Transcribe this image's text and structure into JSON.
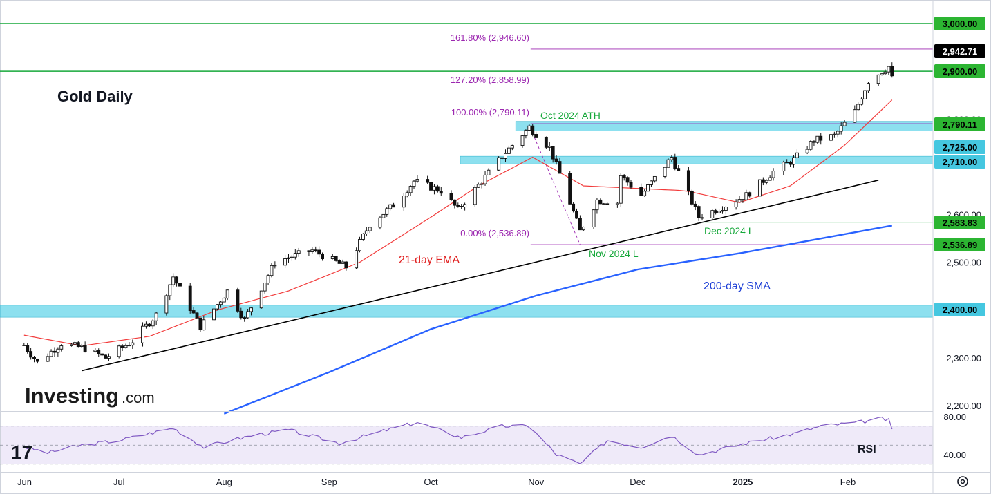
{
  "chart_data": {
    "type": "candlestick",
    "title": "Gold Daily",
    "x_axis": {
      "tick_labels": [
        "Jun",
        "Jul",
        "Aug",
        "Sep",
        "Oct",
        "Nov",
        "Dec",
        "2025",
        "Feb"
      ],
      "range": [
        "2024-06-01",
        "2025-02-28"
      ]
    },
    "y_axis": {
      "tick_labels": [
        "2,200.00",
        "2,300.00",
        "2,500.00",
        "2,600.00",
        "2,800.00"
      ],
      "tick_values": [
        2200,
        2300,
        2500,
        2600,
        2800
      ],
      "range": [
        2180,
        3030
      ]
    },
    "price_tags": [
      {
        "label": "3,000.00",
        "value": 3000,
        "color": "#2cb532",
        "dark": false
      },
      {
        "label": "2,942.71",
        "value": 2942.71,
        "color": "#000000",
        "dark": true
      },
      {
        "label": "2,900.00",
        "value": 2900,
        "color": "#2cb532",
        "dark": false
      },
      {
        "label": "2,790.11",
        "value": 2790.11,
        "color": "#2cb532",
        "dark": false
      },
      {
        "label": "2,725.00",
        "value": 2725,
        "color": "#45c7e0",
        "dark": false
      },
      {
        "label": "2,710.00",
        "value": 2710,
        "color": "#45c7e0",
        "dark": false
      },
      {
        "label": "2,583.83",
        "value": 2583.83,
        "color": "#2cb532",
        "dark": false
      },
      {
        "label": "2,536.89",
        "value": 2536.89,
        "color": "#2cb532",
        "dark": false
      },
      {
        "label": "2,400.00",
        "value": 2400,
        "color": "#45c7e0",
        "dark": false
      }
    ],
    "fibonacci": [
      {
        "label": "161.80% (2,946.60)",
        "value": 2946.6
      },
      {
        "label": "127.20% (2,858.99)",
        "value": 2858.99
      },
      {
        "label": "100.00% (2,790.11)",
        "value": 2790.11
      },
      {
        "label": "0.00% (2,536.89)",
        "value": 2536.89
      }
    ],
    "horizontal_lines": [
      3000,
      2900
    ],
    "zones": [
      {
        "from": 2775,
        "to": 2795
      },
      {
        "from": 2706,
        "to": 2722
      },
      {
        "from": 2385,
        "to": 2410
      }
    ],
    "annotations": {
      "oct_ath": "Oct 2024 ATH",
      "nov_low": "Nov 2024 L",
      "dec_low": "Dec 2024 L",
      "ema": "21-day EMA",
      "sma": "200-day SMA",
      "rsi": "RSI"
    },
    "trendline": {
      "start": [
        "2024-06-20",
        2273
      ],
      "end": [
        "2025-02-10",
        2672
      ]
    },
    "sma200": [
      [
        "2024-08-01",
        2183
      ],
      [
        "2024-09-01",
        2270
      ],
      [
        "2024-10-01",
        2360
      ],
      [
        "2024-11-01",
        2430
      ],
      [
        "2024-12-01",
        2485
      ],
      [
        "2025-01-01",
        2520
      ],
      [
        "2025-02-01",
        2560
      ],
      [
        "2025-02-14",
        2577
      ]
    ],
    "ohlc_anchors": [
      [
        "2024-06-01",
        2345
      ],
      [
        "2024-06-07",
        2290
      ],
      [
        "2024-06-14",
        2330
      ],
      [
        "2024-06-21",
        2320
      ],
      [
        "2024-06-27",
        2300
      ],
      [
        "2024-07-05",
        2335
      ],
      [
        "2024-07-12",
        2390
      ],
      [
        "2024-07-17",
        2470
      ],
      [
        "2024-07-25",
        2365
      ],
      [
        "2024-08-02",
        2440
      ],
      [
        "2024-08-07",
        2380
      ],
      [
        "2024-08-16",
        2500
      ],
      [
        "2024-08-20",
        2510
      ],
      [
        "2024-08-27",
        2525
      ],
      [
        "2024-09-06",
        2490
      ],
      [
        "2024-09-13",
        2580
      ],
      [
        "2024-09-20",
        2620
      ],
      [
        "2024-09-26",
        2670
      ],
      [
        "2024-10-04",
        2650
      ],
      [
        "2024-10-09",
        2610
      ],
      [
        "2024-10-16",
        2670
      ],
      [
        "2024-10-23",
        2730
      ],
      [
        "2024-10-30",
        2783
      ],
      [
        "2024-11-05",
        2740
      ],
      [
        "2024-11-08",
        2685
      ],
      [
        "2024-11-14",
        2565
      ],
      [
        "2024-11-19",
        2630
      ],
      [
        "2024-11-25",
        2625
      ],
      [
        "2024-11-22",
        2710
      ],
      [
        "2024-12-02",
        2640
      ],
      [
        "2024-12-11",
        2720
      ],
      [
        "2024-12-19",
        2595
      ],
      [
        "2024-12-24",
        2610
      ],
      [
        "2025-01-02",
        2640
      ],
      [
        "2025-01-10",
        2690
      ],
      [
        "2025-01-16",
        2715
      ],
      [
        "2025-01-22",
        2755
      ],
      [
        "2025-01-28",
        2765
      ],
      [
        "2025-02-03",
        2815
      ],
      [
        "2025-02-07",
        2880
      ],
      [
        "2025-02-11",
        2900
      ],
      [
        "2025-02-13",
        2910
      ],
      [
        "2025-02-14",
        2885
      ]
    ],
    "ema21_anchors": [
      [
        "2024-06-01",
        2350
      ],
      [
        "2024-06-20",
        2325
      ],
      [
        "2024-07-10",
        2345
      ],
      [
        "2024-07-30",
        2400
      ],
      [
        "2024-08-20",
        2440
      ],
      [
        "2024-09-10",
        2500
      ],
      [
        "2024-09-30",
        2590
      ],
      [
        "2024-10-15",
        2660
      ],
      [
        "2024-10-31",
        2720
      ],
      [
        "2024-11-15",
        2660
      ],
      [
        "2024-11-30",
        2655
      ],
      [
        "2024-12-15",
        2650
      ],
      [
        "2024-12-31",
        2625
      ],
      [
        "2025-01-15",
        2660
      ],
      [
        "2025-01-31",
        2745
      ],
      [
        "2025-02-14",
        2840
      ]
    ],
    "rsi": {
      "label": "RSI",
      "tick_labels": [
        "80.00",
        "40.00"
      ],
      "tick_values": [
        80,
        40
      ],
      "range": [
        25,
        85
      ],
      "guides": [
        70,
        50,
        30
      ],
      "anchors": [
        [
          "2024-06-01",
          50
        ],
        [
          "2024-06-10",
          42
        ],
        [
          "2024-06-20",
          50
        ],
        [
          "2024-07-01",
          55
        ],
        [
          "2024-07-17",
          68
        ],
        [
          "2024-07-26",
          48
        ],
        [
          "2024-08-09",
          60
        ],
        [
          "2024-08-20",
          66
        ],
        [
          "2024-09-04",
          52
        ],
        [
          "2024-09-20",
          68
        ],
        [
          "2024-09-27",
          74
        ],
        [
          "2024-10-10",
          58
        ],
        [
          "2024-10-22",
          70
        ],
        [
          "2024-10-30",
          70
        ],
        [
          "2024-11-07",
          40
        ],
        [
          "2024-11-14",
          30
        ],
        [
          "2024-11-22",
          55
        ],
        [
          "2024-12-02",
          48
        ],
        [
          "2024-12-11",
          60
        ],
        [
          "2024-12-19",
          40
        ],
        [
          "2025-01-02",
          52
        ],
        [
          "2025-01-16",
          62
        ],
        [
          "2025-01-24",
          70
        ],
        [
          "2025-02-04",
          74
        ],
        [
          "2025-02-11",
          78
        ],
        [
          "2025-02-13",
          76
        ],
        [
          "2025-02-14",
          66
        ]
      ]
    }
  },
  "branding": {
    "logo_text": "Investing",
    "logo_suffix": ".com",
    "tv_logo": "17"
  }
}
